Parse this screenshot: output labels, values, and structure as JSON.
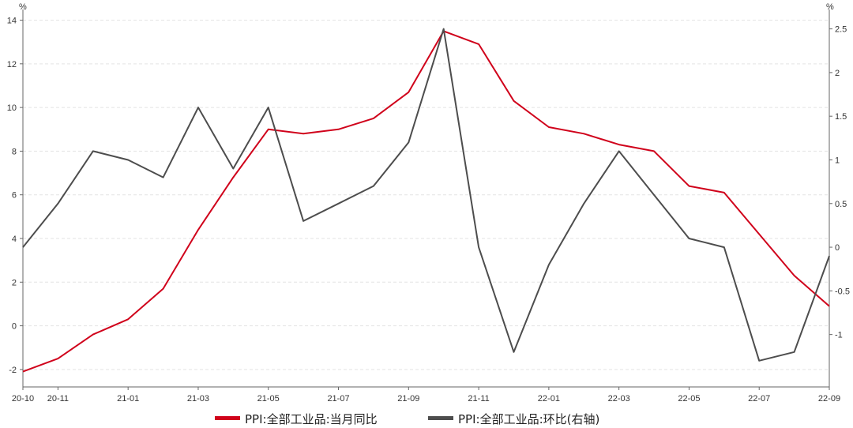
{
  "chart_data": {
    "type": "line",
    "categories": [
      "20-10",
      "20-11",
      "20-12",
      "21-01",
      "21-02",
      "21-03",
      "21-04",
      "21-05",
      "21-06",
      "21-07",
      "21-08",
      "21-09",
      "21-10",
      "21-11",
      "21-12",
      "22-01",
      "22-02",
      "22-03",
      "22-04",
      "22-05",
      "22-06",
      "22-07",
      "22-08",
      "22-09"
    ],
    "x_tick_labels": [
      "20-10",
      "20-11",
      "21-01",
      "21-03",
      "21-05",
      "21-07",
      "21-09",
      "21-11",
      "22-01",
      "22-03",
      "22-05",
      "22-07",
      "22-09"
    ],
    "y_left": {
      "unit": "%",
      "ylim": [
        -2.8,
        14.2
      ],
      "ticks": [
        -2,
        0,
        2,
        4,
        6,
        8,
        10,
        12,
        14
      ]
    },
    "y_right": {
      "unit": "%",
      "ylim": [
        -1.6,
        2.65
      ],
      "ticks": [
        "-1",
        "-0.5",
        "0",
        "0.5",
        "1",
        "1.5",
        "2",
        "2.5"
      ]
    },
    "grid": true,
    "legend_position": "bottom",
    "series": [
      {
        "name": "PPI:全部工业品:当月同比",
        "axis": "left",
        "color": "#d0021b",
        "values": [
          -2.1,
          -1.5,
          -0.4,
          0.3,
          1.7,
          4.4,
          6.8,
          9.0,
          8.8,
          9.0,
          9.5,
          10.7,
          13.5,
          12.9,
          10.3,
          9.1,
          8.8,
          8.3,
          8.0,
          6.4,
          6.1,
          4.2,
          2.3,
          0.9
        ]
      },
      {
        "name": "PPI:全部工业品:环比(右轴)",
        "axis": "right",
        "color": "#4d4d4d",
        "values": [
          0.0,
          0.5,
          1.1,
          1.0,
          0.8,
          1.6,
          0.9,
          1.6,
          0.3,
          0.5,
          0.7,
          1.2,
          2.5,
          0.0,
          -1.2,
          -0.2,
          0.5,
          1.1,
          0.6,
          0.1,
          0.0,
          -1.3,
          -1.2,
          -0.1
        ]
      }
    ]
  }
}
